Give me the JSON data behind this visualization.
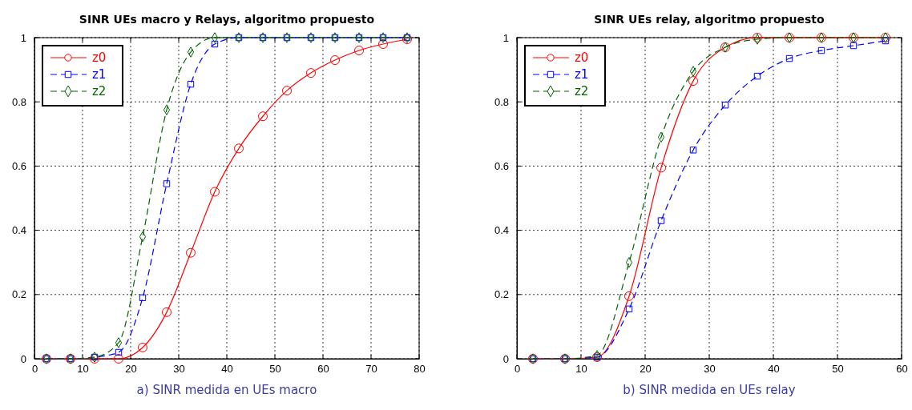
{
  "chart_data": [
    {
      "type": "line",
      "title": "SINR UEs macro y Relays, algoritmo propuesto",
      "xlabel": "a) SINR medida en UEs macro",
      "x": [
        2.5,
        7.5,
        12.5,
        17.5,
        22.5,
        27.5,
        32.5,
        37.5,
        42.5,
        47.5,
        52.5,
        57.5,
        62.5,
        67.5,
        72.5,
        77.5
      ],
      "xlim": [
        0,
        80
      ],
      "xticks": [
        0,
        10,
        20,
        30,
        40,
        50,
        60,
        70,
        80
      ],
      "ylim": [
        0,
        1
      ],
      "yticks": [
        0,
        0.2,
        0.4,
        0.6,
        0.8,
        1
      ],
      "grid": true,
      "legend": "top left",
      "series": [
        {
          "name": "z0",
          "color": "#ff0000",
          "marker": "circle",
          "line_style": "solid",
          "values": [
            0,
            0,
            0,
            0,
            0.035,
            0.145,
            0.33,
            0.52,
            0.655,
            0.755,
            0.835,
            0.89,
            0.93,
            0.96,
            0.98,
            0.995
          ]
        },
        {
          "name": "z1",
          "color": "#0000ff",
          "marker": "square",
          "line_style": "dashed",
          "values": [
            0,
            0,
            0.005,
            0.02,
            0.19,
            0.545,
            0.855,
            0.98,
            1,
            1,
            1,
            1,
            1,
            1,
            1,
            1
          ]
        },
        {
          "name": "z2",
          "color": "#006400",
          "marker": "diamond",
          "line_style": "dashed",
          "values": [
            0,
            0,
            0.005,
            0.05,
            0.38,
            0.775,
            0.955,
            1,
            1,
            1,
            1,
            1,
            1,
            1,
            1,
            1
          ]
        }
      ]
    },
    {
      "type": "line",
      "title": "SINR UEs relay, algoritmo propuesto",
      "xlabel": "b) SINR medida en UEs relay",
      "x": [
        2.5,
        7.5,
        12.5,
        17.5,
        22.5,
        27.5,
        32.5,
        37.5,
        42.5,
        47.5,
        52.5,
        57.5
      ],
      "xlim": [
        0,
        60
      ],
      "xticks": [
        0,
        10,
        20,
        30,
        40,
        50,
        60
      ],
      "ylim": [
        0,
        1
      ],
      "yticks": [
        0,
        0.2,
        0.4,
        0.6,
        0.8,
        1
      ],
      "grid": true,
      "legend": "top left",
      "series": [
        {
          "name": "z0",
          "color": "#ff0000",
          "marker": "circle",
          "line_style": "solid",
          "values": [
            0,
            0,
            0.005,
            0.195,
            0.595,
            0.865,
            0.97,
            1,
            1,
            1,
            1,
            1
          ]
        },
        {
          "name": "z1",
          "color": "#0000ff",
          "marker": "square",
          "line_style": "dashed",
          "values": [
            0,
            0,
            0.005,
            0.155,
            0.43,
            0.65,
            0.79,
            0.88,
            0.935,
            0.96,
            0.975,
            0.99
          ]
        },
        {
          "name": "z2",
          "color": "#006400",
          "marker": "diamond",
          "line_style": "dashed",
          "values": [
            0,
            0,
            0.01,
            0.3,
            0.69,
            0.895,
            0.97,
            0.995,
            1,
            1,
            1,
            1
          ]
        }
      ]
    }
  ]
}
